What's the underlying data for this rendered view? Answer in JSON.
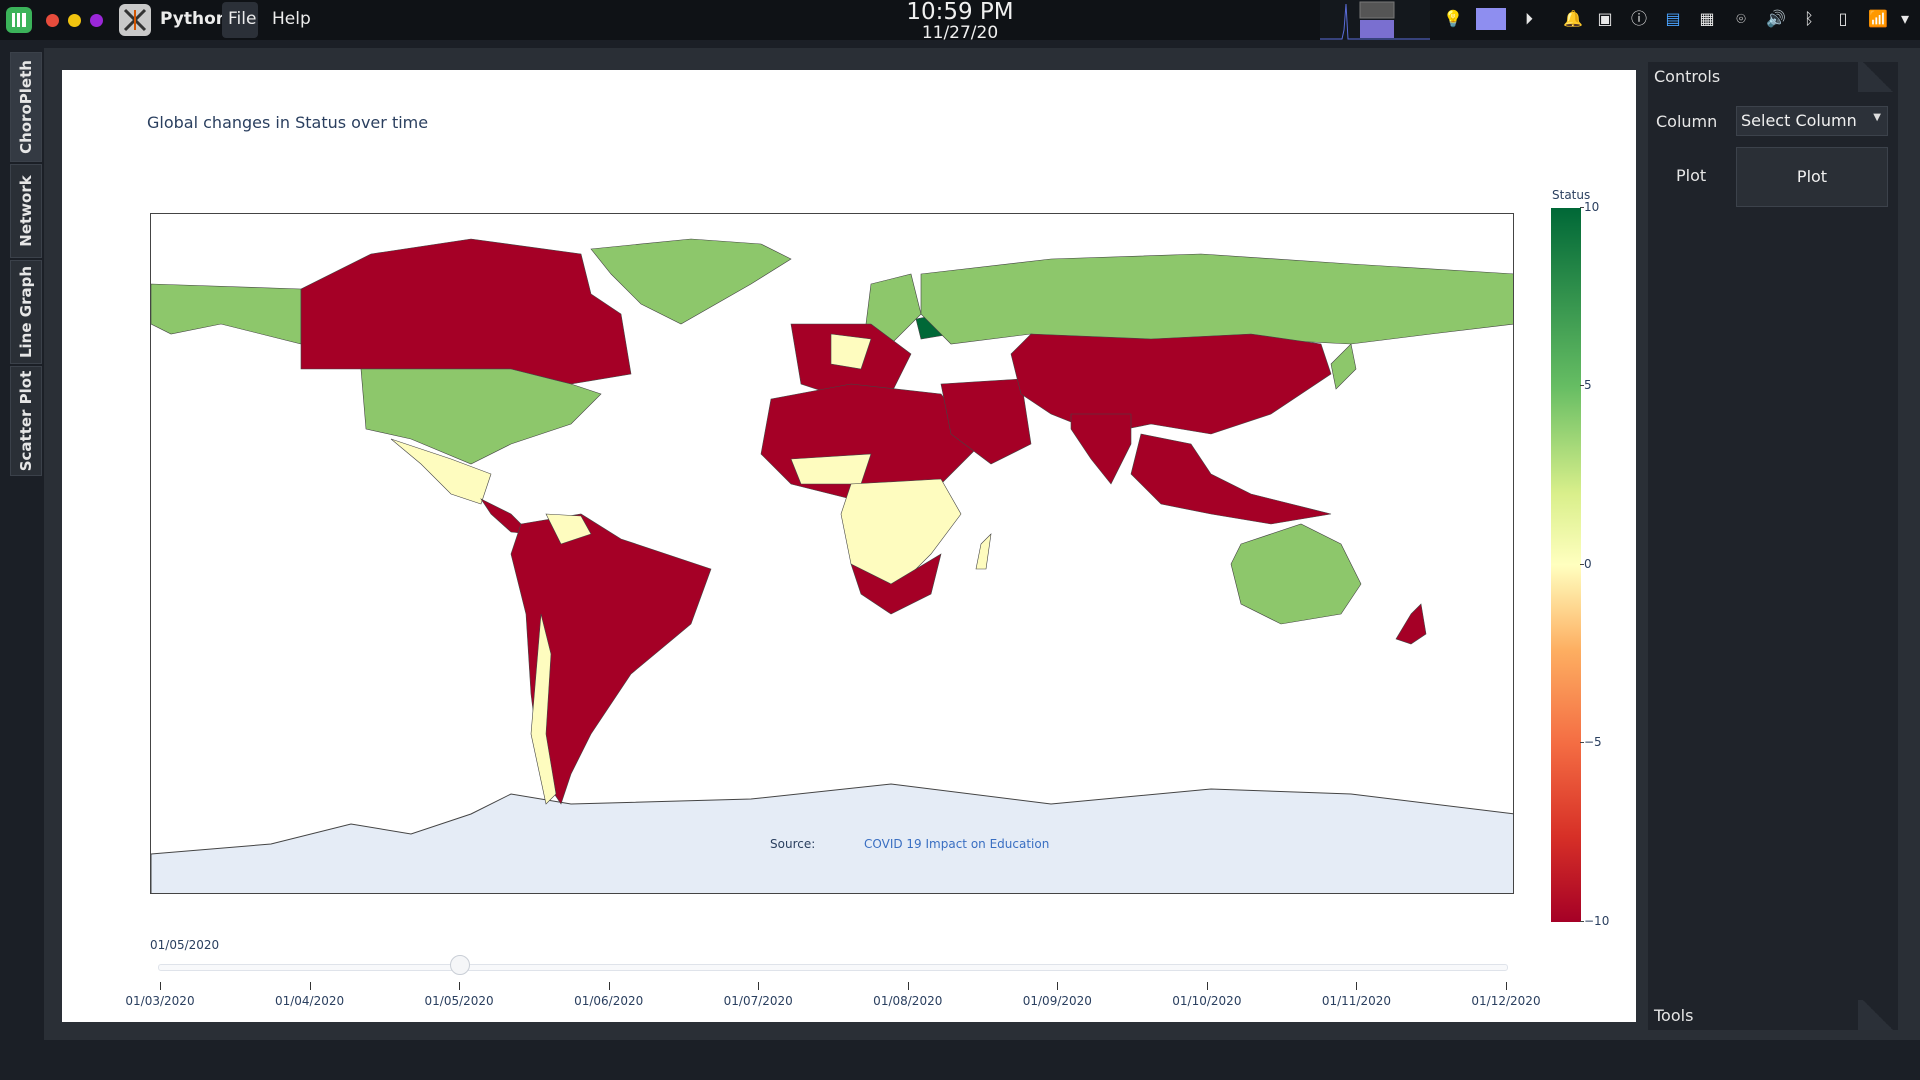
{
  "topbar": {
    "app_name": "Python",
    "menus": [
      "File",
      "Help"
    ],
    "clock_time": "10:59 PM",
    "clock_date": "11/27/20",
    "window_dot_colors": [
      "#e74c3c",
      "#f1c40f",
      "#9b27d9"
    ]
  },
  "tabs": [
    "ChoroPleth",
    "Network",
    "Line Graph",
    "Scatter Plot"
  ],
  "plot": {
    "title": "Global changes in Status over time",
    "source_label": "Source:",
    "source_link": "COVID 19 Impact on Education",
    "slider_current": "01/05/2020",
    "slider_ticks": [
      "01/03/2020",
      "01/04/2020",
      "01/05/2020",
      "01/06/2020",
      "01/07/2020",
      "01/08/2020",
      "01/09/2020",
      "01/10/2020",
      "01/11/2020",
      "01/12/2020"
    ],
    "slider_selected_index": 2
  },
  "chart_data": {
    "type": "choropleth",
    "title": "Global changes in Status over time",
    "colorbar": {
      "title": "Status",
      "range": [
        -10,
        10
      ],
      "ticks": [
        "10",
        "5",
        "0",
        "−5",
        "−10"
      ],
      "colors": [
        "#006837",
        "#66bd63",
        "#ffffbf",
        "#f46d43",
        "#a50026"
      ]
    },
    "legend": "right",
    "annotation": "Source: COVID 19 Impact on Education",
    "regions_status_examples": {
      "Canada": -10,
      "United States": 5,
      "Mexico": 0,
      "Brazil": -10,
      "Russia": 5,
      "China": -10,
      "India": -10,
      "Australia": 5,
      "Greenland": 5,
      "Turkmenistan": 10,
      "Belarus": 10,
      "Central Africa": 0,
      "North Africa": -10
    }
  },
  "controls": {
    "header": "Controls",
    "column_label": "Column",
    "column_select": "Select Column",
    "plot_label": "Plot",
    "plot_button": "Plot",
    "tools_header": "Tools"
  }
}
